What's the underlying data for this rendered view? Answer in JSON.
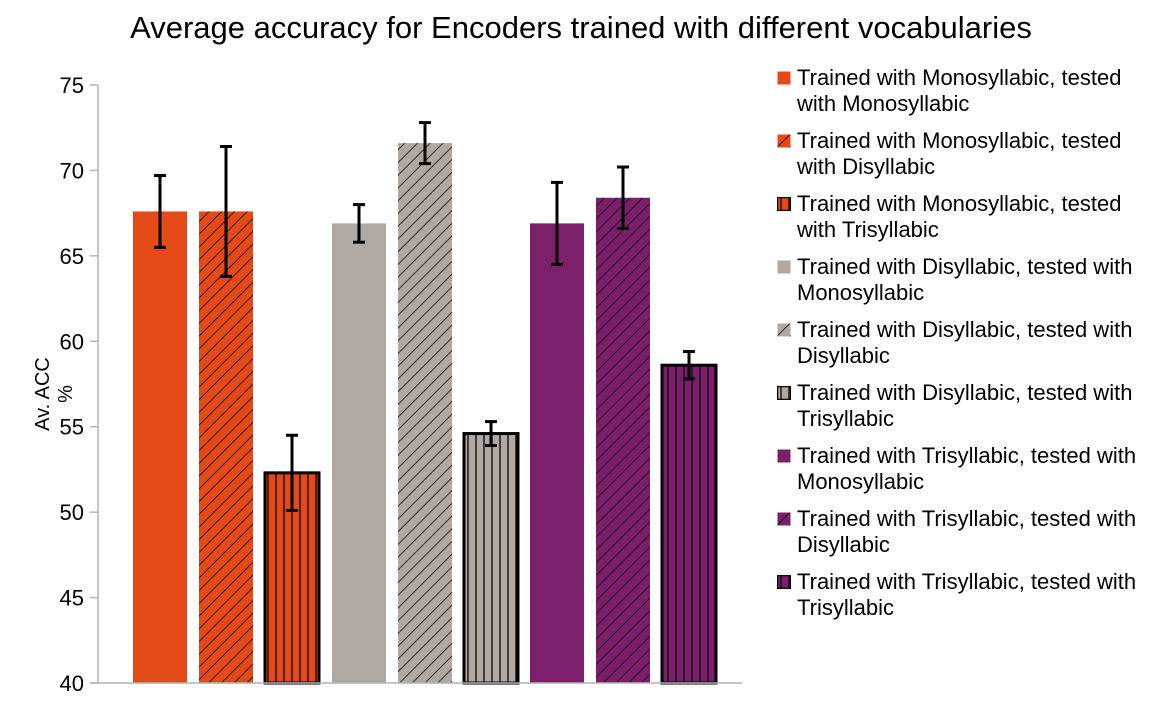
{
  "chart_data": {
    "type": "bar",
    "title": "Average accuracy for Encoders trained with different vocabularies",
    "xlabel": "",
    "ylabel": "Av. ACC %",
    "ylim": [
      40,
      75
    ],
    "yticks": [
      "75",
      "70",
      "65",
      "60",
      "55",
      "50",
      "45",
      "40"
    ],
    "grid": false,
    "legend_position": "right",
    "series": [
      {
        "name": "Trained with Monosyllabic, tested with Monosyllabic",
        "value": 67.6,
        "err": 2.1,
        "color": "#e34a17",
        "pattern": "solid"
      },
      {
        "name": "Trained with Monosyllabic, tested with Disyllabic",
        "value": 67.6,
        "err": 3.8,
        "color": "#e34a17",
        "pattern": "diagonal"
      },
      {
        "name": "Trained with Monosyllabic, tested with Trisyllabic",
        "value": 52.3,
        "err": 2.2,
        "color": "#e34a17",
        "pattern": "vertical"
      },
      {
        "name": "Trained with Disyllabic, tested with Monosyllabic",
        "value": 66.9,
        "err": 1.1,
        "color": "#b0a8a2",
        "pattern": "solid"
      },
      {
        "name": "Trained with Disyllabic, tested with Disyllabic",
        "value": 71.6,
        "err": 1.2,
        "color": "#b0a8a2",
        "pattern": "diagonal"
      },
      {
        "name": "Trained with Disyllabic, tested with Trisyllabic",
        "value": 54.6,
        "err": 0.7,
        "color": "#b0a8a2",
        "pattern": "vertical"
      },
      {
        "name": "Trained with Trisyllabic, tested with Monosyllabic",
        "value": 66.9,
        "err": 2.4,
        "color": "#7b1f6b",
        "pattern": "solid"
      },
      {
        "name": "Trained with Trisyllabic, tested with Disyllabic",
        "value": 68.4,
        "err": 1.8,
        "color": "#7b1f6b",
        "pattern": "diagonal"
      },
      {
        "name": "Trained with Trisyllabic, tested with Trisyllabic",
        "value": 58.6,
        "err": 0.8,
        "color": "#7b1f6b",
        "pattern": "vertical"
      }
    ]
  }
}
